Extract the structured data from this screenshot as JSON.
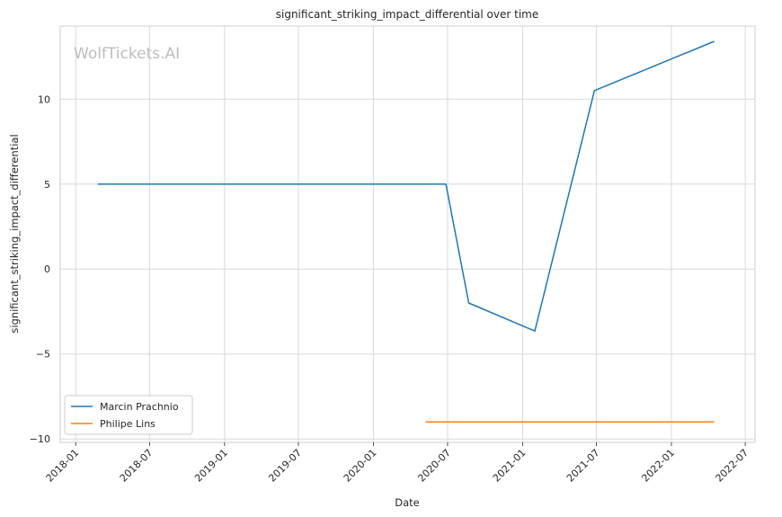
{
  "chart_data": {
    "type": "line",
    "title": "significant_striking_impact_differential over time",
    "xlabel": "Date",
    "ylabel": "significant_striking_impact_differential",
    "watermark": "WolfTickets.AI",
    "x_ticks": [
      "2018-01",
      "2018-07",
      "2019-01",
      "2019-07",
      "2020-01",
      "2020-07",
      "2021-01",
      "2021-07",
      "2022-01",
      "2022-07"
    ],
    "y_ticks": [
      -10,
      -5,
      0,
      5,
      10
    ],
    "y_tick_labels": [
      "−10",
      "−5",
      "0",
      "5",
      "10"
    ],
    "xlim": [
      "2017-11-24",
      "2022-07-25"
    ],
    "ylim": [
      -10.2,
      14.3
    ],
    "grid": true,
    "legend_position": "lower-left",
    "series": [
      {
        "name": "Marcin Prachnio",
        "color": "#1f77b4",
        "x": [
          "2018-02-24",
          "2020-06-27",
          "2020-08-22",
          "2021-01-31",
          "2021-06-26",
          "2022-04-16"
        ],
        "y": [
          5.0,
          5.0,
          -2.0,
          -3.65,
          10.5,
          13.4
        ]
      },
      {
        "name": "Philipe Lins",
        "color": "#ff7f0e",
        "x": [
          "2020-05-08",
          "2022-04-16"
        ],
        "y": [
          -9.0,
          -9.0
        ]
      }
    ]
  }
}
